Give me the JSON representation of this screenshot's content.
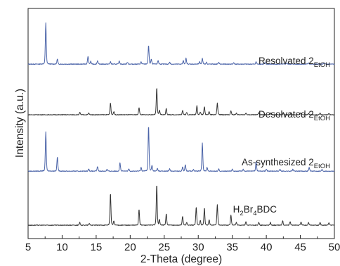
{
  "chart_data": {
    "type": "line",
    "xlabel": "2-Theta (degree)",
    "ylabel": "Intensity (a.u.)",
    "xlim": [
      5,
      50
    ],
    "x_ticks": [
      "5",
      "10",
      "15",
      "20",
      "25",
      "30",
      "35",
      "40",
      "45",
      "50"
    ],
    "grid": false,
    "legend": "none (series labels placed beside each trace)",
    "y_scale": "arbitrary units, traces vertically offset, no y tick labels",
    "series": [
      {
        "name": "Resolvated 2EtOH",
        "label_main": "Resolvated 2",
        "label_sub": "EtOH",
        "color": "#4a63a8",
        "offset": 0.755,
        "peaks": [
          [
            7.6,
            0.18
          ],
          [
            9.3,
            0.022
          ],
          [
            13.8,
            0.034
          ],
          [
            14.2,
            0.012
          ],
          [
            15.2,
            0.015
          ],
          [
            17.1,
            0.01
          ],
          [
            18.4,
            0.014
          ],
          [
            19.6,
            0.008
          ],
          [
            21.6,
            0.01
          ],
          [
            22.7,
            0.082
          ],
          [
            23.1,
            0.02
          ],
          [
            24.1,
            0.016
          ],
          [
            25.8,
            0.008
          ],
          [
            27.8,
            0.015
          ],
          [
            28.2,
            0.026
          ],
          [
            30.2,
            0.01
          ],
          [
            30.6,
            0.026
          ],
          [
            31.2,
            0.008
          ],
          [
            33.0,
            0.008
          ],
          [
            35.2,
            0.006
          ],
          [
            38.5,
            0.01
          ],
          [
            39.8,
            0.006
          ],
          [
            43.0,
            0.005
          ],
          [
            46.2,
            0.006
          ],
          [
            48.5,
            0.005
          ]
        ]
      },
      {
        "name": "Desolvated 2EtOH",
        "label_main": "Desolvated 2",
        "label_sub": "EtOH",
        "color": "#333333",
        "offset": 0.535,
        "peaks": [
          [
            12.6,
            0.01
          ],
          [
            13.9,
            0.008
          ],
          [
            17.1,
            0.052
          ],
          [
            17.6,
            0.014
          ],
          [
            21.3,
            0.032
          ],
          [
            23.9,
            0.118
          ],
          [
            24.3,
            0.018
          ],
          [
            25.3,
            0.027
          ],
          [
            27.7,
            0.02
          ],
          [
            28.3,
            0.01
          ],
          [
            29.8,
            0.04
          ],
          [
            30.3,
            0.012
          ],
          [
            30.9,
            0.036
          ],
          [
            31.6,
            0.014
          ],
          [
            32.8,
            0.05
          ],
          [
            34.8,
            0.017
          ],
          [
            35.6,
            0.008
          ],
          [
            37.0,
            0.008
          ],
          [
            38.9,
            0.01
          ],
          [
            40.6,
            0.008
          ],
          [
            42.5,
            0.01
          ],
          [
            43.6,
            0.007
          ],
          [
            45.0,
            0.009
          ],
          [
            46.2,
            0.006
          ],
          [
            47.9,
            0.007
          ],
          [
            49.2,
            0.005
          ]
        ]
      },
      {
        "name": "As-synthesized 2EtOH",
        "label_main": "As-synthesized 2",
        "label_sub": "EtOH",
        "color": "#4a63a8",
        "offset": 0.29,
        "peaks": [
          [
            7.6,
            0.17
          ],
          [
            9.3,
            0.062
          ],
          [
            13.9,
            0.01
          ],
          [
            15.2,
            0.02
          ],
          [
            16.6,
            0.008
          ],
          [
            18.5,
            0.038
          ],
          [
            19.8,
            0.01
          ],
          [
            21.6,
            0.016
          ],
          [
            22.7,
            0.2
          ],
          [
            23.2,
            0.024
          ],
          [
            24.0,
            0.012
          ],
          [
            25.8,
            0.01
          ],
          [
            27.7,
            0.018
          ],
          [
            28.1,
            0.028
          ],
          [
            29.3,
            0.008
          ],
          [
            30.6,
            0.122
          ],
          [
            31.3,
            0.016
          ],
          [
            33.0,
            0.01
          ],
          [
            35.0,
            0.008
          ],
          [
            36.6,
            0.008
          ],
          [
            38.5,
            0.042
          ],
          [
            40.0,
            0.01
          ],
          [
            42.0,
            0.008
          ],
          [
            43.9,
            0.008
          ],
          [
            46.3,
            0.016
          ],
          [
            48.2,
            0.008
          ]
        ]
      },
      {
        "name": "H2Br4BDC",
        "label_parts": [
          "H",
          "2",
          "Br",
          "4",
          "BDC"
        ],
        "color": "#333333",
        "offset": 0.055,
        "peaks": [
          [
            12.6,
            0.012
          ],
          [
            14.0,
            0.008
          ],
          [
            17.1,
            0.14
          ],
          [
            17.6,
            0.018
          ],
          [
            21.3,
            0.07
          ],
          [
            23.9,
            0.18
          ],
          [
            24.3,
            0.024
          ],
          [
            25.3,
            0.05
          ],
          [
            27.7,
            0.04
          ],
          [
            28.3,
            0.012
          ],
          [
            29.7,
            0.08
          ],
          [
            30.3,
            0.02
          ],
          [
            30.9,
            0.075
          ],
          [
            31.6,
            0.024
          ],
          [
            32.8,
            0.09
          ],
          [
            34.8,
            0.045
          ],
          [
            35.6,
            0.012
          ],
          [
            37.0,
            0.014
          ],
          [
            38.9,
            0.012
          ],
          [
            40.6,
            0.012
          ],
          [
            42.4,
            0.02
          ],
          [
            43.5,
            0.016
          ],
          [
            45.1,
            0.015
          ],
          [
            46.2,
            0.012
          ],
          [
            47.9,
            0.012
          ],
          [
            49.2,
            0.01
          ]
        ]
      }
    ]
  }
}
